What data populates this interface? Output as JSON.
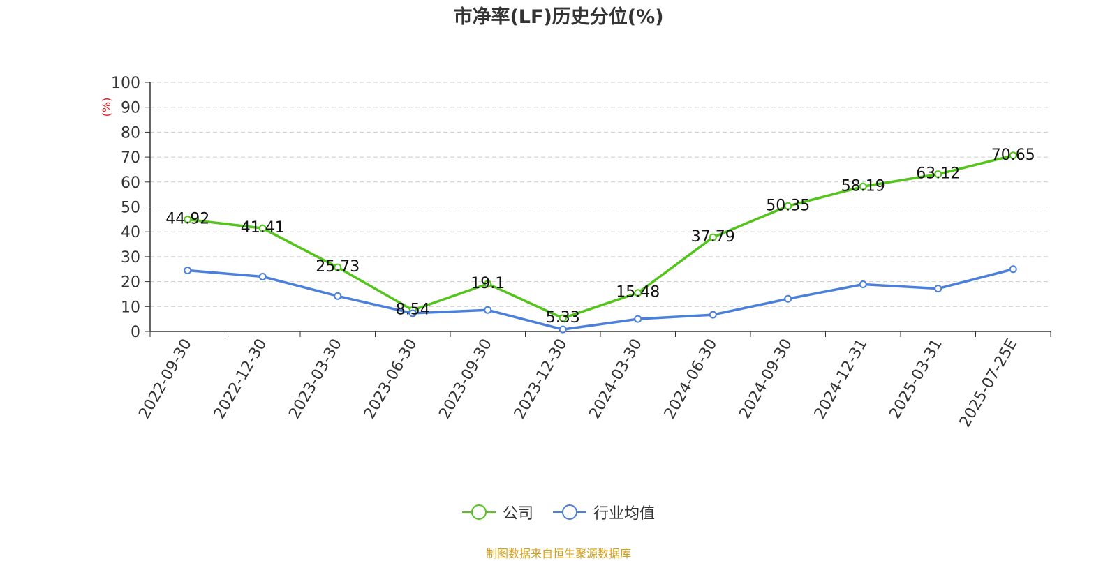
{
  "chart_data": {
    "type": "line",
    "title": "市净率(LF)历史分位(%)",
    "ylabel": "(%)",
    "xlabel": "",
    "ylim": [
      0,
      100
    ],
    "yticks": [
      0,
      10,
      20,
      30,
      40,
      50,
      60,
      70,
      80,
      90,
      100
    ],
    "grid": true,
    "legend_position": "bottom",
    "categories": [
      "2022-09-30",
      "2022-12-30",
      "2023-03-30",
      "2023-06-30",
      "2023-09-30",
      "2023-12-30",
      "2024-03-30",
      "2024-06-30",
      "2024-09-30",
      "2024-12-31",
      "2025-03-31",
      "2025-07-25E"
    ],
    "series": [
      {
        "name": "公司",
        "color": "#52c41a",
        "labeled": true,
        "values": [
          44.92,
          41.41,
          25.73,
          8.54,
          19.1,
          5.33,
          15.48,
          37.79,
          50.35,
          58.19,
          63.12,
          70.65
        ]
      },
      {
        "name": "行业均值",
        "color": "#4a7fdb",
        "labeled": false,
        "values": [
          24.5,
          22.0,
          14.2,
          7.3,
          8.6,
          0.8,
          5.0,
          6.7,
          13.1,
          18.9,
          17.2,
          25.0
        ]
      }
    ]
  },
  "source": "制图数据来自恒生聚源数据库",
  "colors": {
    "ylabel": "#e02020",
    "source": "#d4a017",
    "axis": "#333333",
    "grid": "#cccccc"
  }
}
